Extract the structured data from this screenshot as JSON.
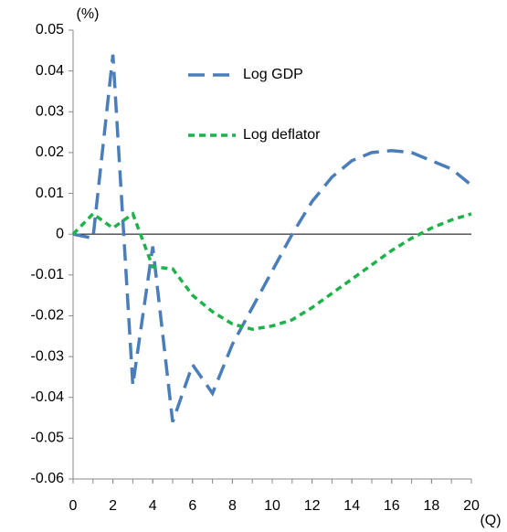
{
  "chart_data": {
    "type": "line",
    "y_label": "(%)",
    "x_label": "(Q)",
    "x": [
      0,
      1,
      2,
      3,
      4,
      5,
      6,
      7,
      8,
      9,
      10,
      11,
      12,
      13,
      14,
      15,
      16,
      17,
      18,
      19,
      20
    ],
    "series": [
      {
        "name": "Log GDP",
        "color": "#4a7ebb",
        "dash": "18,9",
        "values": [
          0,
          -0.001,
          0.044,
          -0.037,
          -0.003,
          -0.046,
          -0.032,
          -0.039,
          -0.027,
          -0.018,
          -0.009,
          0.0,
          0.008,
          0.014,
          0.018,
          0.02,
          0.0205,
          0.02,
          0.018,
          0.016,
          0.012
        ]
      },
      {
        "name": "Log deflator",
        "color": "#1fb24a",
        "dash": "7,5",
        "values": [
          0,
          0.005,
          0.0015,
          0.005,
          -0.008,
          -0.0085,
          -0.015,
          -0.019,
          -0.022,
          -0.0233,
          -0.0225,
          -0.021,
          -0.018,
          -0.0145,
          -0.011,
          -0.0075,
          -0.004,
          -0.001,
          0.0015,
          0.0035,
          0.005
        ]
      }
    ],
    "xlim": [
      0,
      20
    ],
    "xticks": [
      0,
      2,
      4,
      6,
      8,
      10,
      12,
      14,
      16,
      18,
      20
    ],
    "ylim": [
      -0.06,
      0.05
    ],
    "yticks": [
      -0.06,
      -0.05,
      -0.04,
      -0.03,
      -0.02,
      -0.01,
      0,
      0.01,
      0.02,
      0.03,
      0.04,
      0.05
    ],
    "zero_line": true
  }
}
